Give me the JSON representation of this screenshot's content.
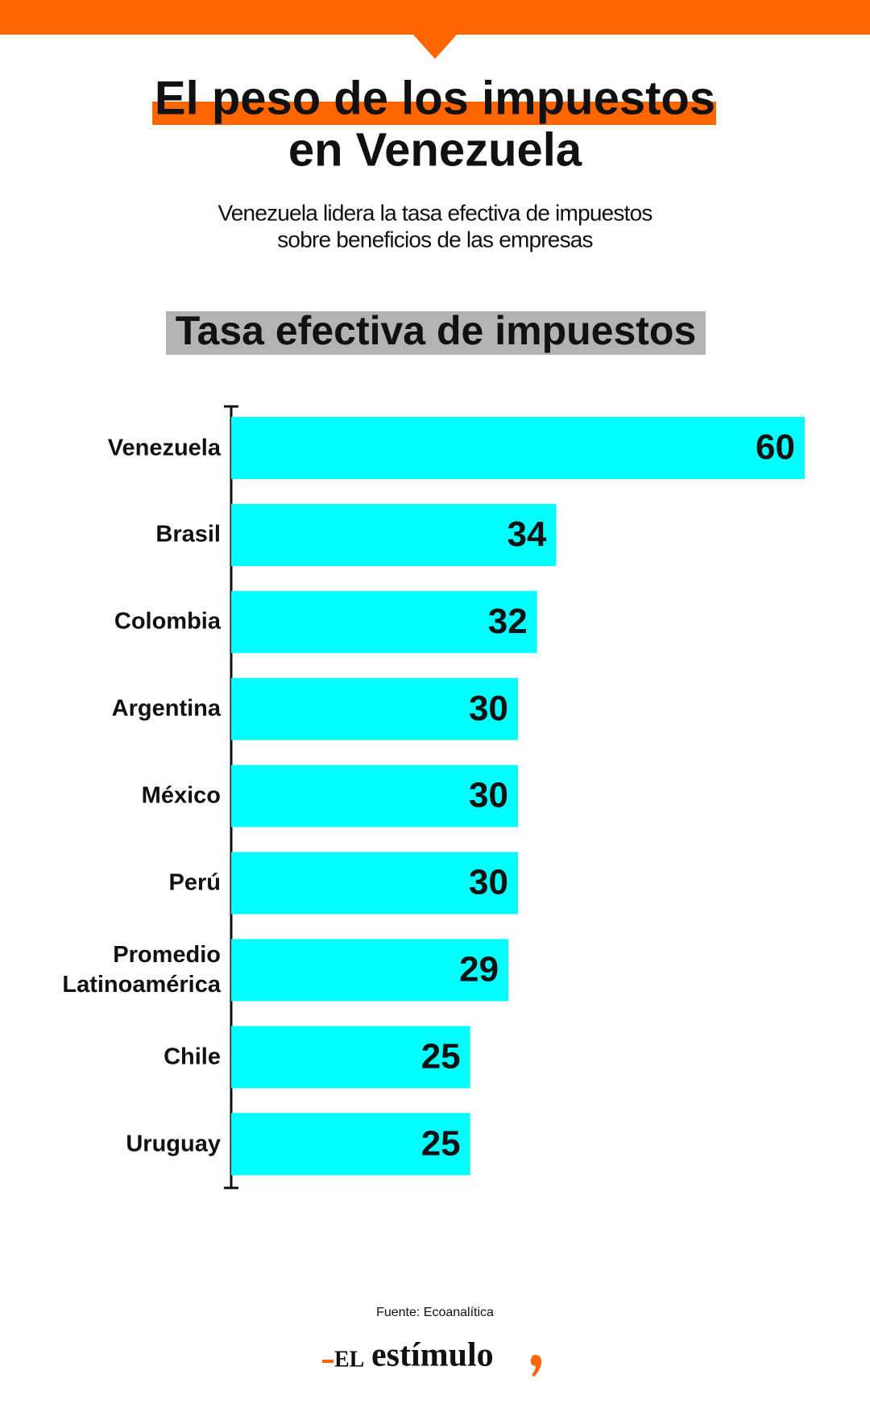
{
  "header": {
    "title": [
      "El peso de los impuestos",
      "en Venezuela"
    ],
    "subtitle": [
      "Venezuela lidera la tasa efectiva de impuestos",
      "sobre beneficios de las empresas"
    ]
  },
  "chart_data": {
    "type": "hbar",
    "title": "Tasa efectiva de impuestos",
    "categories": [
      "Venezuela",
      "Brasil",
      "Colombia",
      "Argentina",
      "México",
      "Perú",
      "Promedio Latinoamérica",
      "Chile",
      "Uruguay"
    ],
    "values": [
      60,
      34,
      32,
      30,
      30,
      30,
      29,
      25,
      25
    ],
    "color": "#00ffff"
  },
  "footer": {
    "source": "Fuente: Ecoanalítica",
    "logo_prefix": "EL",
    "logo_name": "estímulo"
  }
}
